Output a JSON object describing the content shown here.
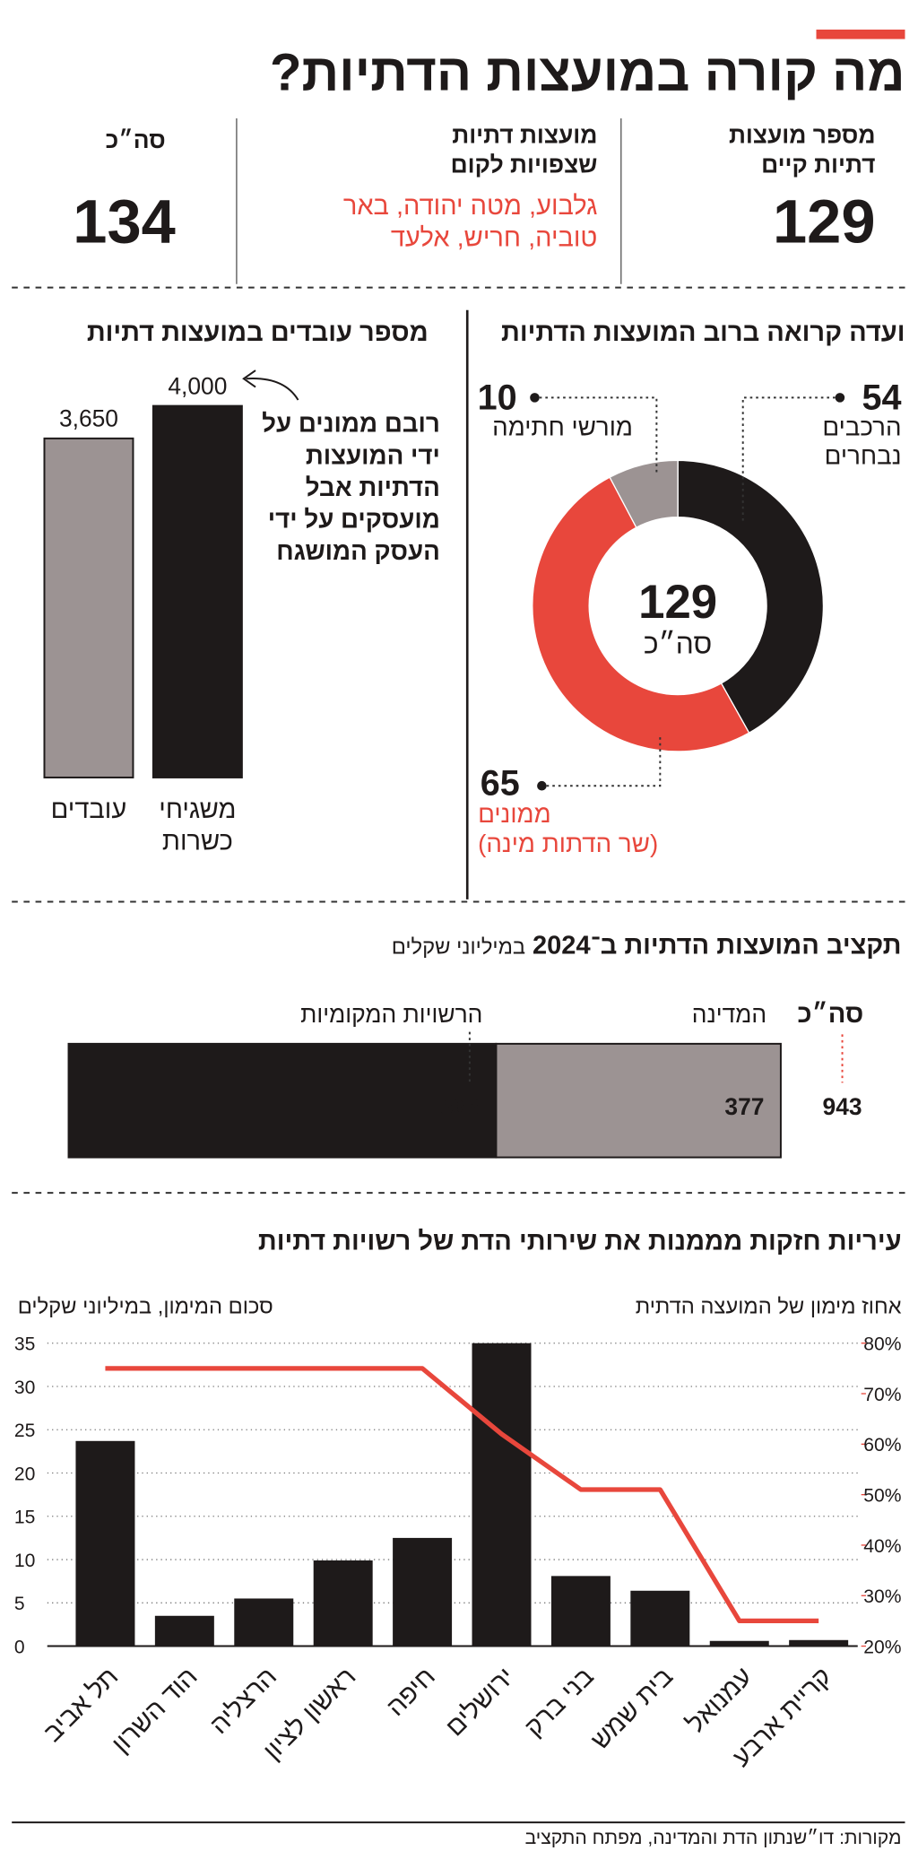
{
  "title": "מה קורה במועצות הדתיות?",
  "stats": [
    {
      "label": "מספר מועצות דתיות קיים",
      "value": 129
    },
    {
      "label": "מועצות דתיות שצפויות לקום",
      "text": "גלבוע, מטה יהודה, באר טוביה, חריש, אלעד"
    },
    {
      "label": "סה״כ",
      "value": 134
    }
  ],
  "chart_data": [
    {
      "type": "donut",
      "title": "ועדה קרואה ברוב המועצות הדתיות",
      "categories": [
        "הרכבים נבחרים",
        "ממונים",
        "מורשי חתימה"
      ],
      "values": [
        54,
        65,
        10
      ],
      "colors": [
        "#1e1a1a",
        "#e8473c",
        "#9c9393"
      ],
      "notes": [
        null,
        "(שר הדתות מינה)",
        null
      ],
      "center_value": 129,
      "center_label": "סה״כ"
    },
    {
      "type": "bar",
      "title": "מספר עובדים במועצות דתיות",
      "categories": [
        "משגיחי כשרות",
        "עובדים"
      ],
      "values": [
        4000,
        3650
      ],
      "value_labels": [
        "4,000",
        "3,650"
      ],
      "colors": [
        "#1e1a1a",
        "#9c9393"
      ],
      "annotation": "רובם ממונים על ידי המועצות הדתיות אבל מועסקים על ידי העסק המושגח"
    },
    {
      "type": "stacked_bar",
      "title": "תקציב המועצות הדתיות ב־2024",
      "subtitle": "במיליוני שקלים",
      "series": [
        {
          "name": "המדינה",
          "color": "#9c9393",
          "values": [
            377
          ]
        },
        {
          "name": "הרשויות המקומיות",
          "color": "#1e1a1a",
          "values": [
            566
          ]
        }
      ],
      "total_label": "סה״כ",
      "total": 943,
      "total_color": "#e8473c"
    },
    {
      "type": "bar_line",
      "title": "עיריות חזקות מממנות את שירותי הדת של רשויות דתיות",
      "ylabel": "סכום המימון, במיליוני שקלים",
      "y2label": "אחוז מימון של המועצה הדתית",
      "categories": [
        "תל אביב",
        "הוד השרון",
        "הרצליה",
        "ראשון לציון",
        "חיפה",
        "ירושלים",
        "בני ברק",
        "בית שמש",
        "עמנואל",
        "קריית ארבע"
      ],
      "series": [
        {
          "type": "bar",
          "color": "#1e1a1a",
          "values": [
            23.7,
            3.5,
            5.5,
            9.9,
            12.5,
            35,
            8.1,
            6.4,
            0.6,
            0.7
          ]
        },
        {
          "type": "line",
          "axis": "y2",
          "color": "#e8473c",
          "values": [
            75,
            75,
            75,
            75,
            75,
            62,
            51,
            51,
            25,
            25
          ]
        }
      ],
      "ylim": [
        0,
        35
      ],
      "yticks": [
        0,
        5,
        10,
        15,
        20,
        25,
        30,
        35
      ],
      "y2lim": [
        20,
        80
      ],
      "y2ticks": [
        {
          "value": 20,
          "label": "20%"
        },
        {
          "value": 30,
          "label": "30%"
        },
        {
          "value": 40,
          "label": "40%"
        },
        {
          "value": 50,
          "label": "50%"
        },
        {
          "value": 60,
          "label": "60%"
        },
        {
          "value": 70,
          "label": "70%"
        },
        {
          "value": 80,
          "label": "80%"
        }
      ],
      "grid": true
    }
  ],
  "source": "מקורות: דו״שנתון הדת והמדינה, מפתח התקציב"
}
